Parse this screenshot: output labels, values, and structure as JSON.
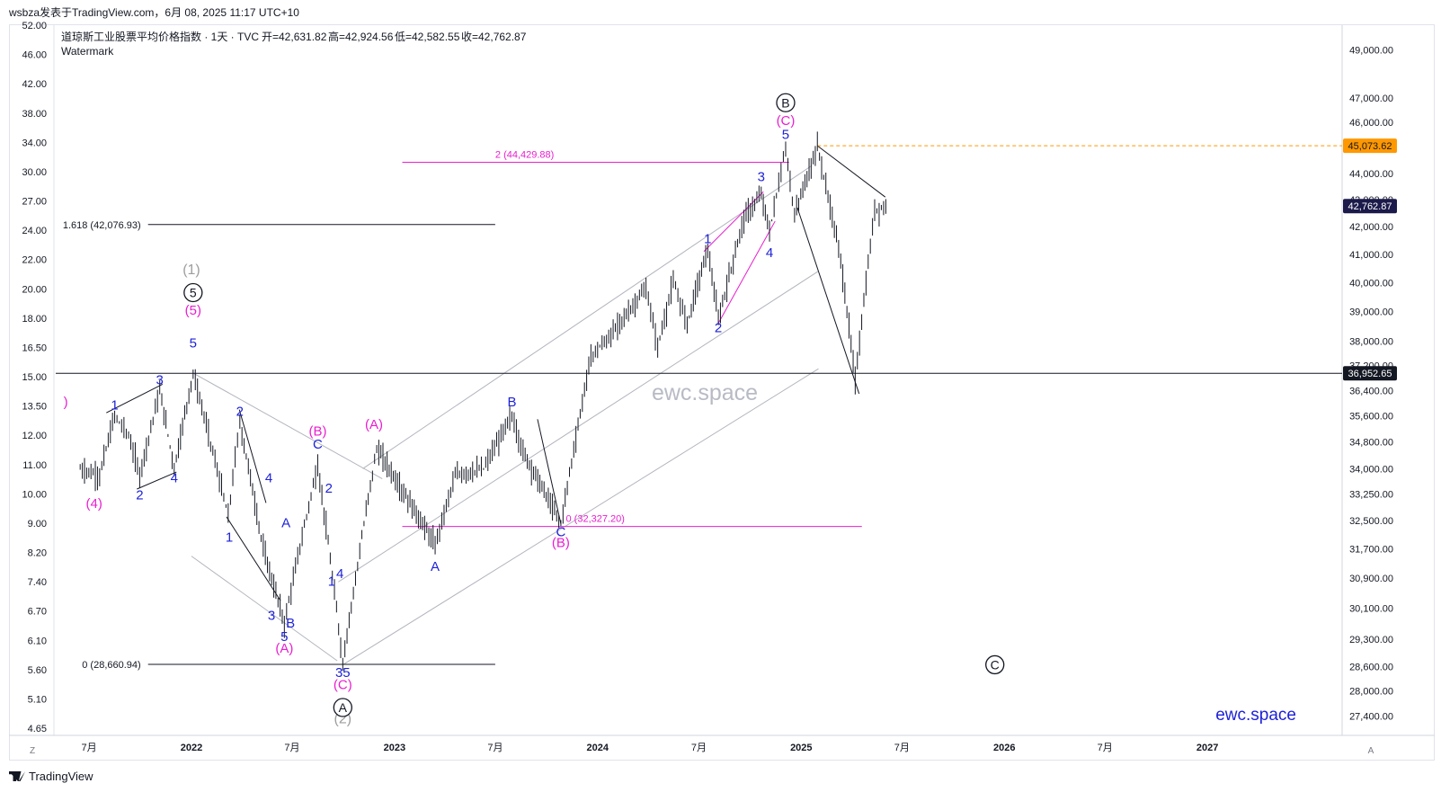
{
  "header": {
    "publisher": "wsbza发表于TradingView.com，6月 08, 2025 11:17 UTC+10",
    "symbol_title": "道琼斯工业股票平均价格指数 · 1天 · TVC",
    "ohlc": {
      "open": "开=42,631.82",
      "high": "高=42,924.56",
      "low": "低=42,582.55",
      "close": "收=42,762.87"
    },
    "watermark_label": "Watermark"
  },
  "footer": {
    "brand": "TradingView"
  },
  "axis_corner": {
    "left": "Z",
    "right": "A"
  },
  "watermarks": {
    "center": "ewc.space",
    "corner": "ewc.space"
  },
  "colors": {
    "candle": "#131722",
    "magenta": "#e91ecf",
    "blue": "#1e22d8",
    "gray_label": "#9e9e9e",
    "channel": "#b2b5be",
    "orange": "#ff9800",
    "badge_dark": "#131722",
    "badge_navy": "#1c1a4a"
  },
  "chart_data": {
    "type": "candlestick",
    "title": "道琼斯工业股票平均价格指数 · 1天 · TVC",
    "y_scale": "log",
    "left_axis_ticks": [
      "52.00",
      "46.00",
      "42.00",
      "38.00",
      "34.00",
      "30.00",
      "27.00",
      "24.00",
      "22.00",
      "20.00",
      "18.00",
      "16.50",
      "15.00",
      "13.50",
      "12.00",
      "11.00",
      "10.00",
      "9.00",
      "8.20",
      "7.40",
      "6.70",
      "6.10",
      "5.60",
      "5.10",
      "4.65"
    ],
    "right_axis_ticks": [
      "49,000.00",
      "47,000.00",
      "46,000.00",
      "44,000.00",
      "43,000.00",
      "42,000.00",
      "41,000.00",
      "40,000.00",
      "39,000.00",
      "38,000.00",
      "37,200.00",
      "36,400.00",
      "35,600.00",
      "34,800.00",
      "34,000.00",
      "33,250.00",
      "32,500.00",
      "31,700.00",
      "30,900.00",
      "30,100.00",
      "29,300.00",
      "28,600.00",
      "28,000.00",
      "27,400.00"
    ],
    "x_ticks": [
      "7月",
      "2022",
      "7月",
      "2023",
      "7月",
      "2024",
      "7月",
      "2025",
      "7月",
      "2026",
      "7月",
      "2027"
    ],
    "price_badges": [
      {
        "label": "45,073.62",
        "value": 45073.62,
        "style": "orange"
      },
      {
        "label": "42,762.87",
        "value": 42762.87,
        "style": "navy"
      },
      {
        "label": "36,952.65",
        "value": 36952.65,
        "style": "dark"
      }
    ],
    "fib_levels": [
      {
        "label": "2 (44,429.88)",
        "value": 44429.88,
        "color": "magenta"
      },
      {
        "label": "0 (32,327.20)",
        "value": 32327.2,
        "color": "magenta"
      },
      {
        "label": "1.618 (42,076.93)",
        "value": 42076.93,
        "color": "dark"
      },
      {
        "label": "0 (28,660.94)",
        "value": 28660.94,
        "color": "dark"
      }
    ],
    "waypoints": [
      [
        "2021-06-15",
        34000
      ],
      [
        "2021-07-20",
        33800
      ],
      [
        "2021-08-16",
        35600
      ],
      [
        "2021-09-10",
        35000
      ],
      [
        "2021-09-30",
        33800
      ],
      [
        "2021-11-05",
        36400
      ],
      [
        "2021-12-01",
        34000
      ],
      [
        "2022-01-04",
        36952
      ],
      [
        "2022-03-08",
        32600
      ],
      [
        "2022-03-29",
        35400
      ],
      [
        "2022-05-10",
        31700
      ],
      [
        "2022-06-17",
        29700
      ],
      [
        "2022-08-16",
        34100
      ],
      [
        "2022-09-30",
        28700
      ],
      [
        "2022-11-30",
        34600
      ],
      [
        "2023-01-10",
        33500
      ],
      [
        "2023-03-15",
        31800
      ],
      [
        "2023-04-20",
        33800
      ],
      [
        "2023-06-10",
        34000
      ],
      [
        "2023-07-31",
        35600
      ],
      [
        "2023-08-20",
        34500
      ],
      [
        "2023-10-27",
        32400
      ],
      [
        "2023-12-20",
        37500
      ],
      [
        "2024-01-25",
        38200
      ],
      [
        "2024-03-28",
        39800
      ],
      [
        "2024-04-18",
        37800
      ],
      [
        "2024-05-16",
        40000
      ],
      [
        "2024-06-10",
        38600
      ],
      [
        "2024-07-17",
        41200
      ],
      [
        "2024-08-05",
        38700
      ],
      [
        "2024-09-20",
        42300
      ],
      [
        "2024-10-21",
        43200
      ],
      [
        "2024-11-05",
        41800
      ],
      [
        "2024-12-04",
        45000
      ],
      [
        "2024-12-20",
        42400
      ],
      [
        "2025-01-30",
        45073
      ],
      [
        "2025-03-13",
        40800
      ],
      [
        "2025-04-08",
        36700
      ],
      [
        "2025-05-13",
        42600
      ],
      [
        "2025-06-06",
        42762
      ]
    ],
    "wave_labels": [
      {
        "text": "(5)",
        "color": "magenta",
        "date": "2022-01-04",
        "price": 38900
      },
      {
        "text": "5",
        "color": "blue",
        "date": "2022-01-04",
        "price": 37800
      },
      {
        "text": "3",
        "color": "blue",
        "date": "2021-11-05",
        "price": 36600
      },
      {
        "text": "1",
        "color": "blue",
        "date": "2021-08-16",
        "price": 35800
      },
      {
        "text": "2",
        "color": "blue",
        "date": "2021-09-30",
        "price": 33100
      },
      {
        "text": "4",
        "color": "blue",
        "date": "2021-12-01",
        "price": 33600
      },
      {
        "text": "(4)",
        "color": "magenta",
        "date": "2021-07-10",
        "price": 32850
      },
      {
        "text": ")",
        "color": "magenta",
        "date": "2021-05-20",
        "price": 35900
      },
      {
        "text": "2",
        "color": "blue",
        "date": "2022-03-29",
        "price": 35600
      },
      {
        "text": "1",
        "color": "blue",
        "date": "2022-03-10",
        "price": 31900
      },
      {
        "text": "3",
        "color": "blue",
        "date": "2022-05-25",
        "price": 29800
      },
      {
        "text": "4",
        "color": "blue",
        "date": "2022-05-20",
        "price": 33600
      },
      {
        "text": "A",
        "color": "blue",
        "date": "2022-06-20",
        "price": 32300
      },
      {
        "text": "B",
        "color": "blue",
        "date": "2022-06-28",
        "price": 29600
      },
      {
        "text": "5",
        "color": "blue",
        "date": "2022-06-17",
        "price": 29250
      },
      {
        "text": "(A)",
        "color": "magenta",
        "date": "2022-06-17",
        "price": 28950
      },
      {
        "text": "C",
        "color": "blue",
        "date": "2022-08-16",
        "price": 34600
      },
      {
        "text": "(B)",
        "color": "magenta",
        "date": "2022-08-16",
        "price": 35000
      },
      {
        "text": "2",
        "color": "blue",
        "date": "2022-09-05",
        "price": 33300
      },
      {
        "text": "1",
        "color": "blue",
        "date": "2022-09-10",
        "price": 30700
      },
      {
        "text": "4",
        "color": "blue",
        "date": "2022-09-25",
        "price": 30900
      },
      {
        "text": "35",
        "color": "blue",
        "date": "2022-09-30",
        "price": 28350
      },
      {
        "text": "(C)",
        "color": "magenta",
        "date": "2022-09-30",
        "price": 28050
      },
      {
        "text": "(A)",
        "color": "magenta",
        "date": "2022-11-25",
        "price": 35200
      },
      {
        "text": "A",
        "color": "blue",
        "date": "2023-03-15",
        "price": 31100
      },
      {
        "text": "B",
        "color": "blue",
        "date": "2023-07-31",
        "price": 35900
      },
      {
        "text": "C",
        "color": "blue",
        "date": "2023-10-27",
        "price": 32050
      },
      {
        "text": "(B)",
        "color": "magenta",
        "date": "2023-10-27",
        "price": 31750
      },
      {
        "text": "1",
        "color": "blue",
        "date": "2024-07-17",
        "price": 41400
      },
      {
        "text": "2",
        "color": "blue",
        "date": "2024-08-05",
        "price": 38300
      },
      {
        "text": "3",
        "color": "blue",
        "date": "2024-10-21",
        "price": 43700
      },
      {
        "text": "4",
        "color": "blue",
        "date": "2024-11-05",
        "price": 40900
      },
      {
        "text": "5",
        "color": "blue",
        "date": "2024-12-04",
        "price": 45350
      },
      {
        "text": "(C)",
        "color": "magenta",
        "date": "2024-12-04",
        "price": 45900
      }
    ],
    "circle_labels": [
      {
        "text": "5",
        "date": "2022-01-04",
        "price": 39650,
        "color": "dark"
      },
      {
        "text": "A",
        "date": "2022-09-30",
        "price": 27600,
        "color": "dark"
      },
      {
        "text": "B",
        "date": "2024-12-04",
        "price": 46800,
        "color": "dark"
      },
      {
        "text": "C",
        "date": "2025-12-15",
        "price": 28650,
        "color": "dark"
      }
    ],
    "gray_labels": [
      {
        "text": "(1)",
        "date": "2022-01-01",
        "price": 40300
      },
      {
        "text": "(2)",
        "date": "2022-09-30",
        "price": 27220
      }
    ]
  }
}
